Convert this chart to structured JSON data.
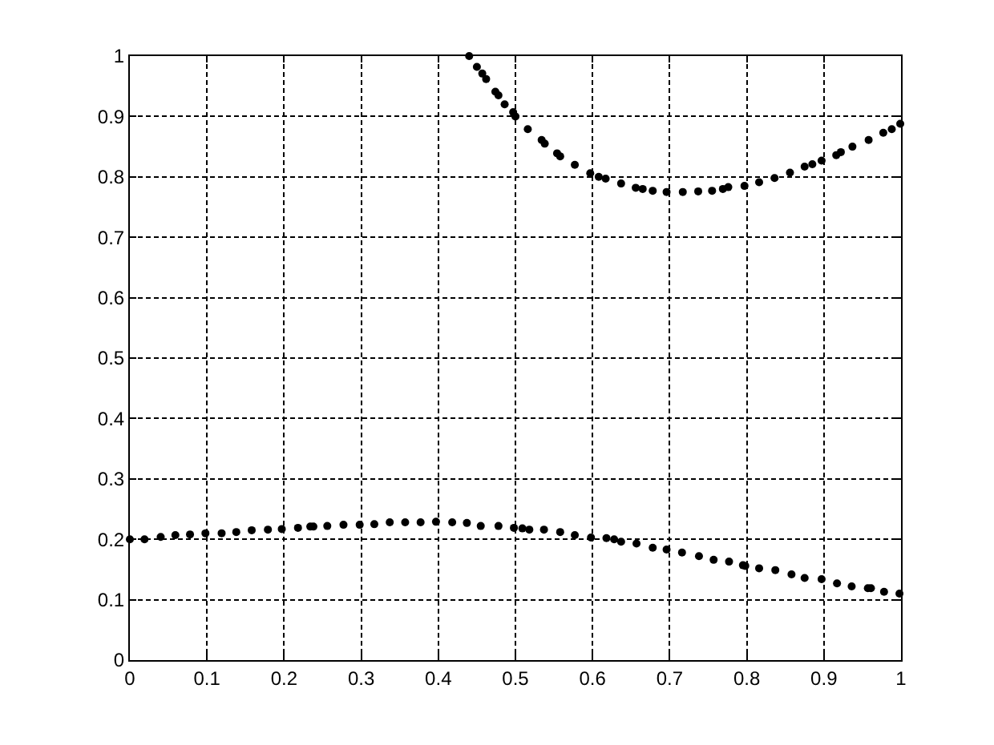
{
  "chart_data": {
    "type": "scatter",
    "xlim": [
      0,
      1
    ],
    "ylim": [
      0,
      1
    ],
    "xticks": [
      0,
      {
        "value": 0.1,
        "label": "0.1"
      },
      {
        "value": 0.2,
        "label": "0.2"
      },
      {
        "value": 0.3,
        "label": "0.3"
      },
      {
        "value": 0.4,
        "label": "0.4"
      },
      {
        "value": 0.5,
        "label": "0.5"
      },
      {
        "value": 0.6,
        "label": "0.6"
      },
      {
        "value": 0.7,
        "label": "0.7"
      },
      {
        "value": 0.8,
        "label": "0.8"
      },
      {
        "value": 0.9,
        "label": "0.9"
      },
      1
    ],
    "yticks": [
      0,
      {
        "value": 0.1,
        "label": "0.1"
      },
      {
        "value": 0.2,
        "label": "0.2"
      },
      {
        "value": 0.3,
        "label": "0.3"
      },
      {
        "value": 0.4,
        "label": "0.4"
      },
      {
        "value": 0.5,
        "label": "0.5"
      },
      {
        "value": 0.6,
        "label": "0.6"
      },
      {
        "value": 0.7,
        "label": "0.7"
      },
      {
        "value": 0.8,
        "label": "0.8"
      },
      {
        "value": 0.9,
        "label": "0.9"
      },
      1
    ],
    "grid": true,
    "marker": "circle",
    "series": [
      {
        "color": "#000000",
        "x": [
          0.44,
          0.45,
          0.457,
          0.462,
          0.474,
          0.478,
          0.486,
          0.497,
          0.5,
          0.516,
          0.534,
          0.538,
          0.554,
          0.558,
          0.577,
          0.597,
          0.608,
          0.617,
          0.637,
          0.656,
          0.665,
          0.678,
          0.696,
          0.717,
          0.737,
          0.755,
          0.769,
          0.776,
          0.797,
          0.816,
          0.836,
          0.856,
          0.875,
          0.885,
          0.897,
          0.916,
          0.922,
          0.937,
          0.958,
          0.977,
          0.988,
          0.999
        ],
        "values": [
          1.0,
          0.982,
          0.971,
          0.962,
          0.941,
          0.935,
          0.92,
          0.907,
          0.9,
          0.879,
          0.861,
          0.855,
          0.839,
          0.834,
          0.82,
          0.806,
          0.8,
          0.797,
          0.789,
          0.782,
          0.78,
          0.777,
          0.775,
          0.775,
          0.776,
          0.777,
          0.78,
          0.783,
          0.785,
          0.791,
          0.798,
          0.807,
          0.817,
          0.821,
          0.827,
          0.836,
          0.841,
          0.85,
          0.861,
          0.873,
          0.879,
          0.888
        ]
      },
      {
        "color": "#000000",
        "x": [
          0,
          0.019,
          0.04,
          0.059,
          0.078,
          0.098,
          0.119,
          0.138,
          0.158,
          0.179,
          0.197,
          0.218,
          0.234,
          0.238,
          0.256,
          0.277,
          0.298,
          0.317,
          0.337,
          0.357,
          0.377,
          0.397,
          0.418,
          0.437,
          0.455,
          0.478,
          0.498,
          0.509,
          0.518,
          0.537,
          0.558,
          0.577,
          0.598,
          0.618,
          0.628,
          0.637,
          0.657,
          0.678,
          0.696,
          0.716,
          0.738,
          0.757,
          0.777,
          0.795,
          0.798,
          0.816,
          0.837,
          0.858,
          0.875,
          0.897,
          0.917,
          0.936,
          0.957,
          0.961,
          0.978,
          0.998
        ],
        "values": [
          0.2,
          0.2,
          0.204,
          0.207,
          0.208,
          0.21,
          0.21,
          0.212,
          0.215,
          0.216,
          0.217,
          0.219,
          0.221,
          0.221,
          0.222,
          0.224,
          0.224,
          0.225,
          0.228,
          0.228,
          0.228,
          0.229,
          0.228,
          0.227,
          0.222,
          0.222,
          0.219,
          0.218,
          0.216,
          0.216,
          0.212,
          0.207,
          0.203,
          0.202,
          0.2,
          0.196,
          0.193,
          0.186,
          0.183,
          0.178,
          0.172,
          0.166,
          0.163,
          0.157,
          0.156,
          0.152,
          0.149,
          0.142,
          0.136,
          0.134,
          0.127,
          0.122,
          0.119,
          0.119,
          0.113,
          0.11
        ]
      }
    ]
  }
}
